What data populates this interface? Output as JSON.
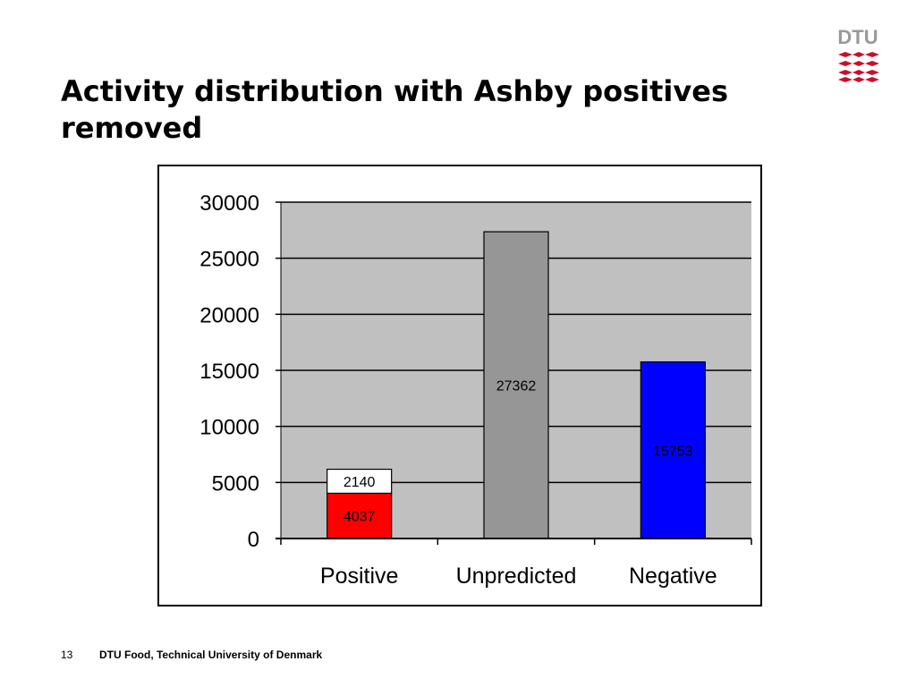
{
  "slide": {
    "title": "Activity distribution with Ashby positives removed",
    "logo_text": "DTU",
    "page_number": "13",
    "footer": "DTU Food, Technical University of Denmark"
  },
  "colors": {
    "plot_background": "#c0c0c0",
    "logo_red": "#c8102e",
    "logo_gray": "#9a9a9a"
  },
  "chart_data": {
    "type": "bar",
    "stacked": true,
    "categories": [
      "Positive",
      "Unpredicted",
      "Negative"
    ],
    "ylim": [
      0,
      30000
    ],
    "yticks": [
      0,
      5000,
      10000,
      15000,
      20000,
      25000,
      30000
    ],
    "ytick_labels": [
      "0",
      "5000",
      "10000",
      "15000",
      "20000",
      "25000",
      "30000"
    ],
    "grid": true,
    "legend": "none",
    "xlabel": "",
    "ylabel": "",
    "segments": [
      {
        "category": "Positive",
        "value": 4037,
        "label": "4037",
        "color": "#ff0000"
      },
      {
        "category": "Positive",
        "value": 2140,
        "label": "2140",
        "color": "#ffffff"
      },
      {
        "category": "Unpredicted",
        "value": 27362,
        "label": "27362",
        "color": "#969696"
      },
      {
        "category": "Negative",
        "value": 15753,
        "label": "15753",
        "color": "#0000ff"
      }
    ]
  }
}
